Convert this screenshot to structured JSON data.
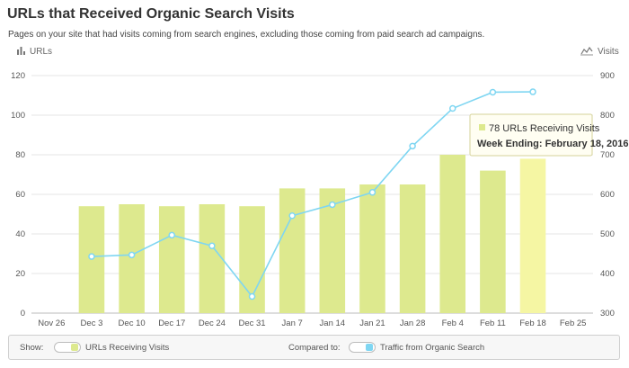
{
  "header": {
    "title": "URLs that Received Organic Search Visits",
    "subtitle": "Pages on your site that had visits coming from search engines, excluding those coming from paid search ad campaigns."
  },
  "chart_data": {
    "type": "bar",
    "left_axis_title": "URLs",
    "right_axis_title": "Visits",
    "categories": [
      "Nov 26",
      "Dec 3",
      "Dec 10",
      "Dec 17",
      "Dec 24",
      "Dec 31",
      "Jan 7",
      "Jan 14",
      "Jan 21",
      "Jan 28",
      "Feb 4",
      "Feb 11",
      "Feb 18",
      "Feb 25"
    ],
    "y_left": {
      "min": 0,
      "max": 120,
      "ticks": [
        0,
        20,
        40,
        60,
        80,
        100,
        120
      ]
    },
    "y_right": {
      "min": 300,
      "max": 900,
      "ticks": [
        300,
        400,
        500,
        600,
        700,
        800,
        900
      ]
    },
    "series": [
      {
        "name": "URLs Receiving Visits",
        "kind": "bar",
        "axis": "left",
        "color": "#dde98e",
        "highlight_color": "#f5f6a3",
        "values": [
          null,
          54,
          55,
          54,
          55,
          54,
          63,
          63,
          65,
          65,
          80,
          72,
          78,
          null
        ]
      },
      {
        "name": "Traffic from Organic Search",
        "kind": "line",
        "axis": "right",
        "color": "#7fd6f2",
        "values": [
          null,
          443,
          447,
          497,
          470,
          342,
          546,
          574,
          605,
          722,
          817,
          858,
          859,
          null
        ]
      }
    ],
    "highlight_index": 12,
    "tooltip": {
      "value_text": "78 URLs Receiving Visits",
      "date_text": "Week Ending: February 18, 2016"
    },
    "grid": true
  },
  "footer": {
    "show_label": "Show:",
    "show_item": "URLs Receiving Visits",
    "compare_label": "Compared to:",
    "compare_item": "Traffic from Organic Search"
  }
}
